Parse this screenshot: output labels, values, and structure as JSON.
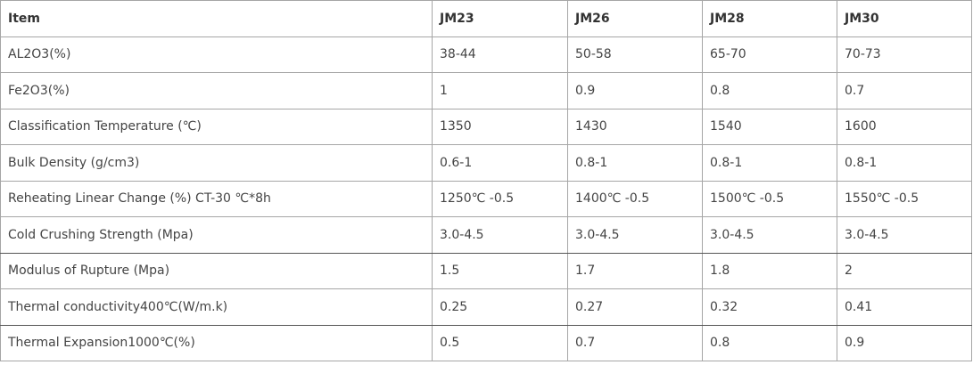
{
  "table": {
    "header": [
      "Item",
      "JM23",
      "JM26",
      "JM28",
      "JM30"
    ],
    "rows": [
      [
        "AL2O3(%)",
        "38-44",
        "50-58",
        "65-70",
        "70-73"
      ],
      [
        "Fe2O3(%)",
        "1",
        "0.9",
        "0.8",
        "0.7"
      ],
      [
        "Classification Temperature (℃)",
        "1350",
        "1430",
        "1540",
        "1600"
      ],
      [
        "Bulk Density (g/cm3)",
        "0.6-1",
        "0.8-1",
        "0.8-1",
        "0.8-1"
      ],
      [
        "Reheating Linear Change (%) CT-30 ℃*8h",
        "1250℃ -0.5",
        "1400℃ -0.5",
        "1500℃ -0.5",
        "1550℃ -0.5"
      ],
      [
        "Cold Crushing Strength (Mpa)",
        "3.0-4.5",
        "3.0-4.5",
        "3.0-4.5",
        "3.0-4.5"
      ],
      [
        "Modulus of Rupture (Mpa)",
        "1.5",
        "1.7",
        "1.8",
        "2"
      ],
      [
        "Thermal conductivity400℃(W/m.k)",
        "0.25",
        "0.27",
        "0.32",
        "0.41"
      ],
      [
        "Thermal Expansion1000℃(%)",
        "0.5",
        "0.7",
        "0.8",
        "0.9"
      ]
    ]
  }
}
